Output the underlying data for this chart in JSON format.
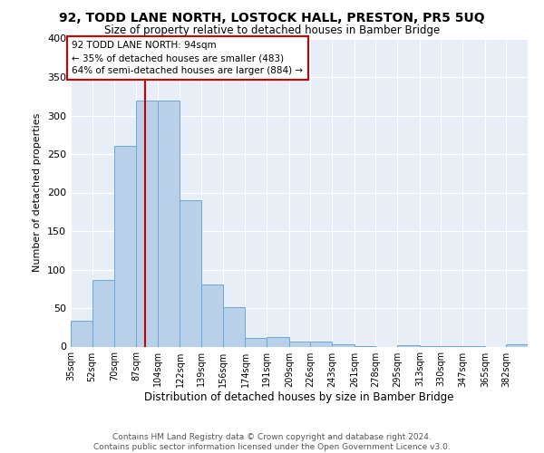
{
  "title": "92, TODD LANE NORTH, LOSTOCK HALL, PRESTON, PR5 5UQ",
  "subtitle": "Size of property relative to detached houses in Bamber Bridge",
  "xlabel": "Distribution of detached houses by size in Bamber Bridge",
  "ylabel": "Number of detached properties",
  "bar_color": "#b8d0e8",
  "bar_edge_color": "#6aaad4",
  "background_color": "#e8eef8",
  "grid_color": "white",
  "vline_value": 94,
  "vline_color": "#cc0000",
  "annotation_text": "92 TODD LANE NORTH: 94sqm\n← 35% of detached houses are smaller (483)\n64% of semi-detached houses are larger (884) →",
  "annotation_box_color": "white",
  "annotation_box_edge": "#cc0000",
  "footer_text": "Contains HM Land Registry data © Crown copyright and database right 2024.\nContains public sector information licensed under the Open Government Licence v3.0.",
  "bin_labels": [
    "35sqm",
    "52sqm",
    "70sqm",
    "87sqm",
    "104sqm",
    "122sqm",
    "139sqm",
    "156sqm",
    "174sqm",
    "191sqm",
    "209sqm",
    "226sqm",
    "243sqm",
    "261sqm",
    "278sqm",
    "295sqm",
    "313sqm",
    "330sqm",
    "347sqm",
    "365sqm",
    "382sqm"
  ],
  "bin_edges": [
    35,
    52,
    70,
    87,
    104,
    122,
    139,
    156,
    174,
    191,
    209,
    226,
    243,
    261,
    278,
    295,
    313,
    330,
    347,
    365,
    382,
    399
  ],
  "bar_heights": [
    33,
    87,
    261,
    320,
    320,
    190,
    81,
    51,
    11,
    12,
    6,
    7,
    3,
    1,
    0,
    2,
    1,
    1,
    1,
    0,
    3
  ],
  "ylim": [
    0,
    400
  ],
  "yticks": [
    0,
    50,
    100,
    150,
    200,
    250,
    300,
    350,
    400
  ]
}
